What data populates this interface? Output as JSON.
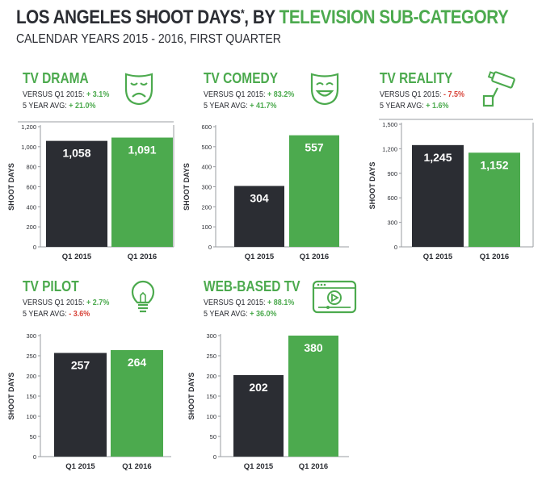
{
  "header": {
    "title_main": "LOS ANGELES SHOOT DAYS",
    "title_sup": "*",
    "title_mid": ", BY ",
    "title_highlight": "TELEVISION SUB-CATEGORY",
    "subtitle": "CALENDAR YEARS 2015 - 2016, FIRST QUARTER"
  },
  "colors": {
    "green": "#4caa4e",
    "dark": "#2b2d33",
    "red": "#d8453b"
  },
  "stat_labels": {
    "versus": "VERSUS Q1 2015:",
    "avg": "5 YEAR AVG:"
  },
  "panels": [
    {
      "title": "TV DRAMA",
      "icon": "drama-mask-icon",
      "versus": "+ 3.1%",
      "versus_sign": "pos",
      "avg": "+ 21.0%",
      "avg_sign": "pos"
    },
    {
      "title": "TV COMEDY",
      "icon": "comedy-mask-icon",
      "versus": "+ 83.2%",
      "versus_sign": "pos",
      "avg": "+ 41.7%",
      "avg_sign": "pos"
    },
    {
      "title": "TV REALITY",
      "icon": "security-camera-icon",
      "versus": "- 7.5%",
      "versus_sign": "neg",
      "avg": "+ 1.6%",
      "avg_sign": "pos"
    },
    {
      "title": "TV PILOT",
      "icon": "lightbulb-icon",
      "versus": "+ 2.7%",
      "versus_sign": "pos",
      "avg": "- 3.6%",
      "avg_sign": "neg"
    },
    {
      "title": "WEB-BASED TV",
      "icon": "video-player-icon",
      "versus": "+ 88.1%",
      "versus_sign": "pos",
      "avg": "+ 36.0%",
      "avg_sign": "pos"
    }
  ],
  "chart_data": [
    {
      "type": "bar",
      "title": "TV DRAMA",
      "ylabel": "SHOOT DAYS",
      "categories": [
        "Q1 2015",
        "Q1 2016"
      ],
      "values": [
        1058,
        1091
      ],
      "value_labels": [
        "1,058",
        "1,091"
      ],
      "ylim": [
        0,
        1200
      ],
      "yticks": [
        0,
        200,
        400,
        600,
        800,
        1000,
        1200
      ],
      "ytick_labels": [
        "0",
        "200",
        "400",
        "600",
        "800",
        "1,000",
        "1,200"
      ]
    },
    {
      "type": "bar",
      "title": "TV COMEDY",
      "ylabel": "SHOOT DAYS",
      "categories": [
        "Q1 2015",
        "Q1 2016"
      ],
      "values": [
        304,
        557
      ],
      "value_labels": [
        "304",
        "557"
      ],
      "ylim": [
        0,
        600
      ],
      "yticks": [
        0,
        100,
        200,
        300,
        400,
        500,
        600
      ],
      "ytick_labels": [
        "0",
        "100",
        "200",
        "300",
        "400",
        "500",
        "600"
      ]
    },
    {
      "type": "bar",
      "title": "TV REALITY",
      "ylabel": "SHOOT DAYS",
      "categories": [
        "Q1 2015",
        "Q1 2016"
      ],
      "values": [
        1245,
        1152
      ],
      "value_labels": [
        "1,245",
        "1,152"
      ],
      "ylim": [
        0,
        1500
      ],
      "yticks": [
        0,
        300,
        600,
        900,
        1200,
        1500
      ],
      "ytick_labels": [
        "0",
        "300",
        "600",
        "900",
        "1,200",
        "1,500"
      ]
    },
    {
      "type": "bar",
      "title": "TV PILOT",
      "ylabel": "SHOOT DAYS",
      "categories": [
        "Q1 2015",
        "Q1 2016"
      ],
      "values": [
        257,
        264
      ],
      "value_labels": [
        "257",
        "264"
      ],
      "ylim": [
        0,
        300
      ],
      "yticks": [
        0,
        50,
        100,
        150,
        200,
        250,
        300
      ],
      "ytick_labels": [
        "0",
        "50",
        "100",
        "150",
        "200",
        "250",
        "300"
      ]
    },
    {
      "type": "bar",
      "title": "WEB-BASED TV",
      "ylabel": "SHOOT DAYS",
      "categories": [
        "Q1 2015",
        "Q1 2016"
      ],
      "values": [
        202,
        380
      ],
      "value_labels": [
        "202",
        "380"
      ],
      "ylim": [
        0,
        300
      ],
      "yticks": [
        0,
        50,
        100,
        150,
        200,
        250,
        300
      ],
      "ytick_labels": [
        "0",
        "50",
        "100",
        "150",
        "200",
        "250",
        "300"
      ],
      "note": "bars drawn to equal height in original; 2016 value exceeds axis max"
    }
  ]
}
